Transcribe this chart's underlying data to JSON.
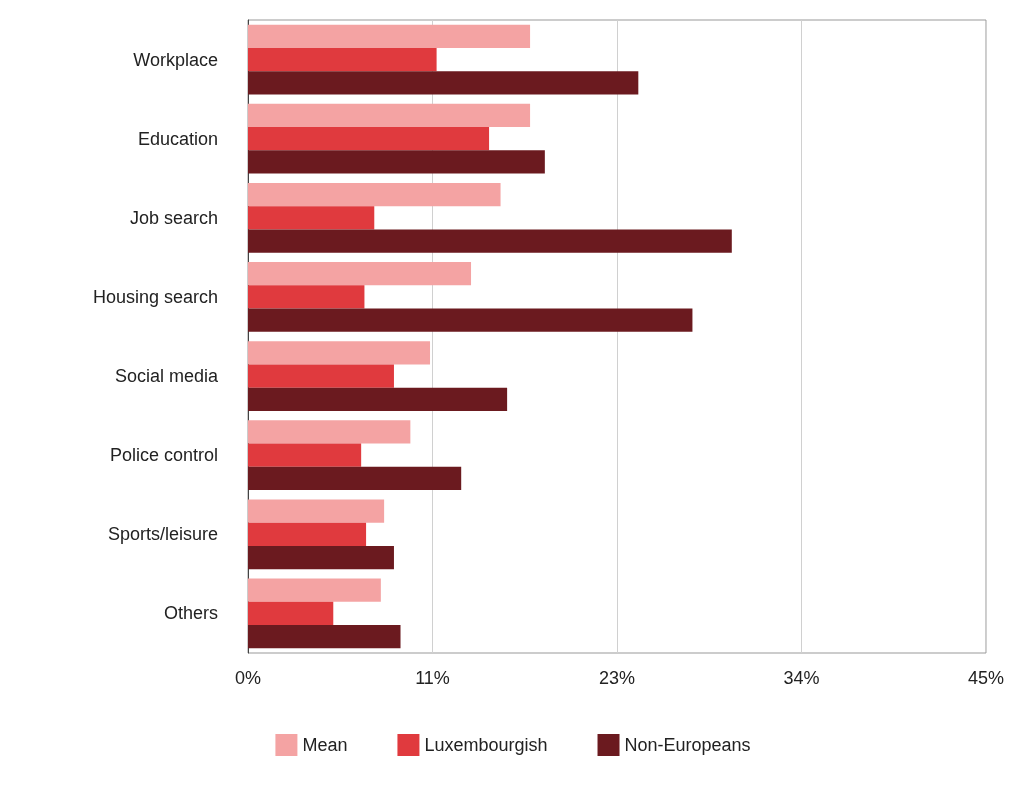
{
  "chart_data": {
    "type": "bar",
    "orientation": "horizontal",
    "categories": [
      "Workplace",
      "Education",
      "Job search",
      "Housing search",
      "Social media",
      "Police control",
      "Sports/leisure",
      "Others"
    ],
    "series": [
      {
        "name": "Mean",
        "color": "#f4a3a3",
        "values": [
          17.2,
          17.2,
          15.4,
          13.6,
          11.1,
          9.9,
          8.3,
          8.1
        ]
      },
      {
        "name": "Luxembourgish",
        "color": "#e03a3e",
        "values": [
          11.5,
          14.7,
          7.7,
          7.1,
          8.9,
          6.9,
          7.2,
          5.2
        ]
      },
      {
        "name": "Non-Europeans",
        "color": "#6b1a1f",
        "values": [
          23.8,
          18.1,
          29.5,
          27.1,
          15.8,
          13.0,
          8.9,
          9.3
        ]
      }
    ],
    "xlim": [
      0,
      45
    ],
    "xticks": [
      {
        "value": 0,
        "label": "0%"
      },
      {
        "value": 11.25,
        "label": "11%"
      },
      {
        "value": 22.5,
        "label": "23%"
      },
      {
        "value": 33.75,
        "label": "34%"
      },
      {
        "value": 45,
        "label": "45%"
      }
    ],
    "grid": "x",
    "legend": "bottom"
  }
}
